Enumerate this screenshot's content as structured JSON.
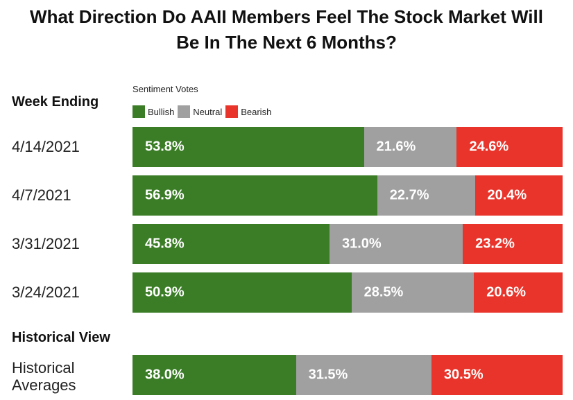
{
  "title_line1": "What Direction Do AAII Members Feel The Stock Market Will",
  "title_line2": "Be In The Next 6 Months?",
  "legend_title": "Sentiment Votes",
  "week_header": "Week Ending",
  "historical_header": "Historical View",
  "colors": {
    "bullish": "#3a7d26",
    "neutral": "#a0a0a0",
    "bearish": "#e8342a"
  },
  "chart_data": {
    "type": "bar",
    "orientation": "horizontal",
    "stacked": true,
    "title": "What Direction Do AAII Members Feel The Stock Market Will Be In The Next 6 Months?",
    "categories": [
      "4/14/2021",
      "4/7/2021",
      "3/31/2021",
      "3/24/2021",
      "Historical Averages"
    ],
    "series": [
      {
        "name": "Bullish",
        "values": [
          53.8,
          56.9,
          45.8,
          50.9,
          38.0
        ],
        "labels": [
          "53.8%",
          "56.9%",
          "45.8%",
          "50.9%",
          "38.0%"
        ],
        "color": "#3a7d26"
      },
      {
        "name": "Neutral",
        "values": [
          21.6,
          22.7,
          31.0,
          28.5,
          31.5
        ],
        "labels": [
          "21.6%",
          "22.7%",
          "31.0%",
          "28.5%",
          "31.5%"
        ],
        "color": "#a0a0a0"
      },
      {
        "name": "Bearish",
        "values": [
          24.6,
          20.4,
          23.2,
          20.6,
          30.5
        ],
        "labels": [
          "24.6%",
          "20.4%",
          "23.2%",
          "20.6%",
          "30.5%"
        ],
        "color": "#e8342a"
      }
    ],
    "xlim": [
      0,
      100
    ],
    "legend_position": "top-left",
    "grid": false
  }
}
